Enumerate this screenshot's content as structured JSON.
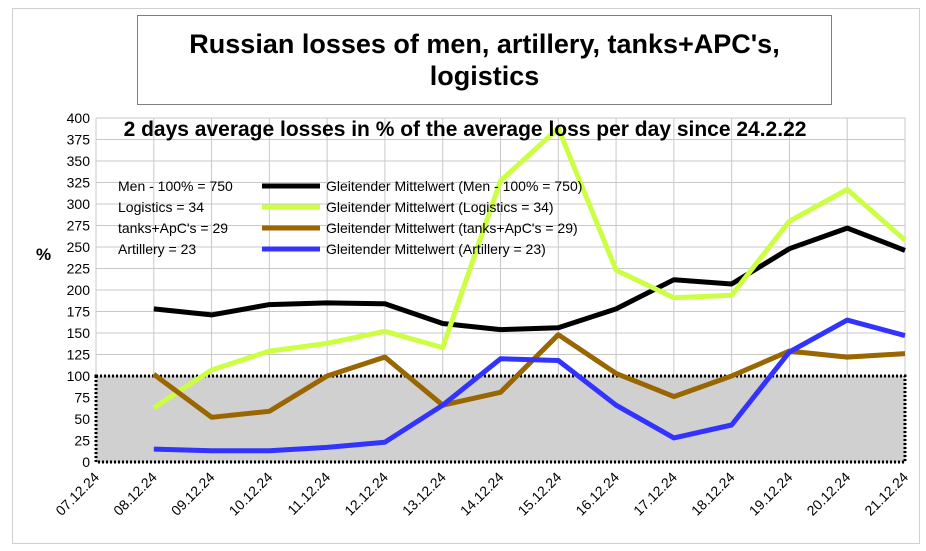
{
  "chart_data": {
    "type": "line",
    "title": "Russian losses of men, artillery, tanks+APC's, logistics",
    "subtitle": "2 days average losses in % of the average loss per day since 24.2.22",
    "ylabel": "%",
    "ylim": [
      0,
      400
    ],
    "yticks": [
      0,
      25,
      50,
      75,
      100,
      125,
      150,
      175,
      200,
      225,
      250,
      275,
      300,
      325,
      350,
      375,
      400
    ],
    "categories": [
      "07.12.24",
      "08.12.24",
      "09.12.24",
      "10.12.24",
      "11.12.24",
      "12.12.24",
      "13.12.24",
      "14.12.24",
      "15.12.24",
      "16.12.24",
      "17.12.24",
      "18.12.24",
      "19.12.24",
      "20.12.24",
      "21.12.24"
    ],
    "grid": true,
    "baseline_band": {
      "from": 0,
      "to": 100,
      "color": "#d0d0d0"
    },
    "legend_notes": [
      "Men - 100% = 750",
      "Logistics = 34",
      "tanks+ApC's = 29",
      "Artillery  = 23"
    ],
    "series": [
      {
        "name": "Gleitender Mittelwert (Men - 100% = 750)",
        "color": "#000000",
        "values": [
          null,
          178,
          171,
          183,
          185,
          184,
          161,
          154,
          156,
          178,
          212,
          207,
          248,
          272,
          246
        ]
      },
      {
        "name": "Gleitender Mittelwert (Logistics = 34)",
        "color": "#ccff44",
        "values": [
          null,
          63,
          107,
          129,
          138,
          152,
          133,
          327,
          388,
          223,
          191,
          194,
          280,
          317,
          258
        ]
      },
      {
        "name": "Gleitender Mittelwert (tanks+ApC's = 29)",
        "color": "#996600",
        "values": [
          null,
          102,
          52,
          59,
          100,
          122,
          66,
          81,
          148,
          103,
          76,
          100,
          129,
          122,
          126
        ]
      },
      {
        "name": "Gleitender Mittelwert (Artillery  = 23)",
        "color": "#3333ff",
        "values": [
          null,
          15,
          13,
          13,
          17,
          23,
          66,
          120,
          118,
          66,
          28,
          43,
          128,
          165,
          147
        ]
      }
    ]
  }
}
